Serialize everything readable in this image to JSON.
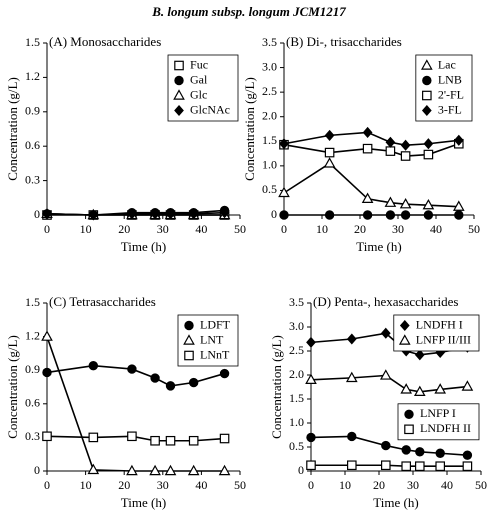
{
  "title": "B. longum subsp. longum JCM1217",
  "chart_data": [
    {
      "type": "line",
      "title": "(A) Monosaccharides",
      "x_label": "Time (h)",
      "y_label": "Concentration (g/L)",
      "x": [
        0,
        12,
        22,
        28,
        32,
        38,
        46
      ],
      "xlim": [
        0,
        50
      ],
      "xticks": [
        0,
        10,
        20,
        30,
        40,
        50
      ],
      "ylim": [
        0,
        1.5
      ],
      "yticks": [
        0,
        0.3,
        0.6,
        0.9,
        1.2,
        1.5
      ],
      "legend_loc": "upper right",
      "series": [
        {
          "name": "Fuc",
          "color": "#000000",
          "marker": "square-open",
          "values": [
            0,
            0,
            0,
            0,
            0,
            0,
            0
          ]
        },
        {
          "name": "Gal",
          "color": "#000000",
          "marker": "circle",
          "values": [
            0.01,
            0,
            0.02,
            0.02,
            0.02,
            0.02,
            0.04
          ]
        },
        {
          "name": "Glc",
          "color": "#000000",
          "marker": "triangle-open",
          "values": [
            0.01,
            0,
            0,
            0,
            0,
            0,
            0
          ]
        },
        {
          "name": "GlcNAc",
          "color": "#000000",
          "marker": "diamond",
          "values": [
            0.01,
            0,
            0.01,
            0.01,
            0.01,
            0.01,
            0.02
          ]
        }
      ]
    },
    {
      "type": "line",
      "title": "(B) Di-, trisaccharides",
      "x_label": "Time (h)",
      "y_label": "Concentration (g/L)",
      "x": [
        0,
        12,
        22,
        28,
        32,
        38,
        46
      ],
      "xlim": [
        0,
        50
      ],
      "xticks": [
        0,
        10,
        20,
        30,
        40,
        50
      ],
      "ylim": [
        0,
        3.5
      ],
      "yticks": [
        0,
        0.5,
        {
          "value": 1,
          "label": "1.0"
        },
        1.5,
        {
          "value": 2,
          "label": "2.0"
        },
        2.5,
        {
          "value": 3,
          "label": "3.0"
        },
        3.5
      ],
      "legend_loc": "upper right",
      "series": [
        {
          "name": "Lac",
          "color": "#000000",
          "marker": "triangle-open",
          "values": [
            0.45,
            1.05,
            0.33,
            0.25,
            0.22,
            0.2,
            0.17
          ]
        },
        {
          "name": "LNB",
          "color": "#000000",
          "marker": "circle",
          "values": [
            0,
            0,
            0,
            0,
            0,
            0,
            0
          ]
        },
        {
          "name": "2'-FL",
          "color": "#000000",
          "marker": "square-open",
          "values": [
            1.43,
            1.27,
            1.35,
            1.3,
            1.2,
            1.23,
            1.45
          ]
        },
        {
          "name": "3-FL",
          "color": "#000000",
          "marker": "diamond",
          "values": [
            1.45,
            1.62,
            1.68,
            1.48,
            1.42,
            1.45,
            1.52
          ]
        }
      ]
    },
    {
      "type": "line",
      "title": "(C) Tetrasaccharides",
      "x_label": "Time (h)",
      "y_label": "Concentration (g/L)",
      "x": [
        0,
        12,
        22,
        28,
        32,
        38,
        46
      ],
      "xlim": [
        0,
        50
      ],
      "xticks": [
        0,
        10,
        20,
        30,
        40,
        50
      ],
      "ylim": [
        0,
        1.5
      ],
      "yticks": [
        0,
        0.3,
        0.6,
        0.9,
        1.2,
        1.5
      ],
      "legend_loc": "upper right",
      "series": [
        {
          "name": "LDFT",
          "color": "#000000",
          "marker": "circle",
          "values": [
            0.88,
            0.94,
            0.91,
            0.83,
            0.76,
            0.79,
            0.87
          ]
        },
        {
          "name": "LNT",
          "color": "#000000",
          "marker": "triangle-open",
          "values": [
            1.2,
            0.01,
            0,
            0,
            0,
            0,
            0
          ]
        },
        {
          "name": "LNnT",
          "color": "#000000",
          "marker": "square-open",
          "values": [
            0.31,
            0.3,
            0.31,
            0.27,
            0.27,
            0.27,
            0.29
          ]
        }
      ]
    },
    {
      "type": "line",
      "title": "(D) Penta-, hexasaccharides",
      "x_label": "Time (h)",
      "y_label": "Concentration (g/L)",
      "x": [
        0,
        12,
        22,
        28,
        32,
        38,
        46
      ],
      "xlim": [
        0,
        50
      ],
      "xticks": [
        0,
        10,
        20,
        30,
        40,
        50
      ],
      "ylim": [
        0,
        3.5
      ],
      "yticks": [
        0,
        0.5,
        {
          "value": 1,
          "label": "1.0"
        },
        1.5,
        {
          "value": 2,
          "label": "2.0"
        },
        2.5,
        {
          "value": 3,
          "label": "3.0"
        },
        3.5
      ],
      "legend_loc": "upper right",
      "series": [
        {
          "name": "LNDFH I",
          "color": "#000000",
          "marker": "diamond",
          "values": [
            2.68,
            2.75,
            2.87,
            2.5,
            2.42,
            2.47,
            2.58
          ]
        },
        {
          "name": "LNFP II/III",
          "color": "#000000",
          "marker": "triangle-open",
          "values": [
            1.9,
            1.94,
            1.99,
            1.7,
            1.65,
            1.7,
            1.76
          ]
        },
        {
          "name": "LNFP I",
          "color": "#000000",
          "marker": "circle",
          "legend_loc": "center right",
          "values": [
            0.7,
            0.72,
            0.53,
            0.44,
            0.4,
            0.37,
            0.33
          ]
        },
        {
          "name": "LNDFH II",
          "color": "#000000",
          "marker": "square-open",
          "legend_loc": "center right",
          "values": [
            0.12,
            0.12,
            0.12,
            0.1,
            0.1,
            0.1,
            0.1
          ]
        }
      ]
    }
  ]
}
